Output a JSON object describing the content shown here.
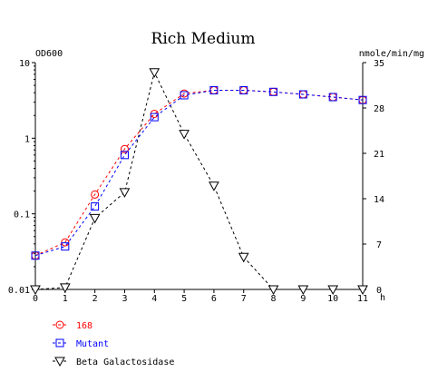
{
  "chart_data": {
    "type": "line",
    "title": "Rich Medium",
    "left_axis_label": "OD600",
    "right_axis_label": "nmole/min/mg",
    "x_unit_label": "h",
    "x": [
      0,
      1,
      2,
      3,
      4,
      5,
      6,
      7,
      8,
      9,
      10,
      11
    ],
    "x_ticks": [
      "0",
      "1",
      "2",
      "3",
      "4",
      "5",
      "6",
      "7",
      "8",
      "9",
      "10",
      "11"
    ],
    "left_axis": {
      "scale": "log",
      "range": [
        0.01,
        10
      ],
      "ticks": [
        {
          "value": 10,
          "label": "10"
        },
        {
          "value": 1,
          "label": "1"
        },
        {
          "value": 0.1,
          "label": "0.1"
        },
        {
          "value": 0.01,
          "label": "0.01"
        }
      ]
    },
    "right_axis": {
      "scale": "linear",
      "range": [
        0,
        35
      ],
      "ticks": [
        {
          "value": 35,
          "label": "35"
        },
        {
          "value": 28,
          "label": "28"
        },
        {
          "value": 21,
          "label": "21"
        },
        {
          "value": 14,
          "label": "14"
        },
        {
          "value": 7,
          "label": "7"
        },
        {
          "value": 0,
          "label": "0"
        }
      ]
    },
    "series": [
      {
        "name": "168",
        "axis": "left",
        "marker": "circle",
        "color": "#ff0000",
        "values": [
          0.028,
          0.042,
          0.18,
          0.72,
          2.1,
          3.9,
          4.3,
          4.3,
          4.1,
          3.8,
          3.5,
          3.2
        ]
      },
      {
        "name": "Mutant",
        "axis": "left",
        "marker": "square",
        "color": "#0000ff",
        "values": [
          0.028,
          0.037,
          0.125,
          0.6,
          1.9,
          3.7,
          4.3,
          4.3,
          4.1,
          3.8,
          3.5,
          3.2
        ]
      },
      {
        "name": "Beta Galactosidase",
        "axis": "right",
        "marker": "triangle-down",
        "color": "#000000",
        "values": [
          0,
          0.3,
          11,
          15,
          33.5,
          24,
          16,
          5,
          0,
          0,
          0,
          0
        ]
      }
    ],
    "legend_position": "bottom-left",
    "grid": false
  }
}
